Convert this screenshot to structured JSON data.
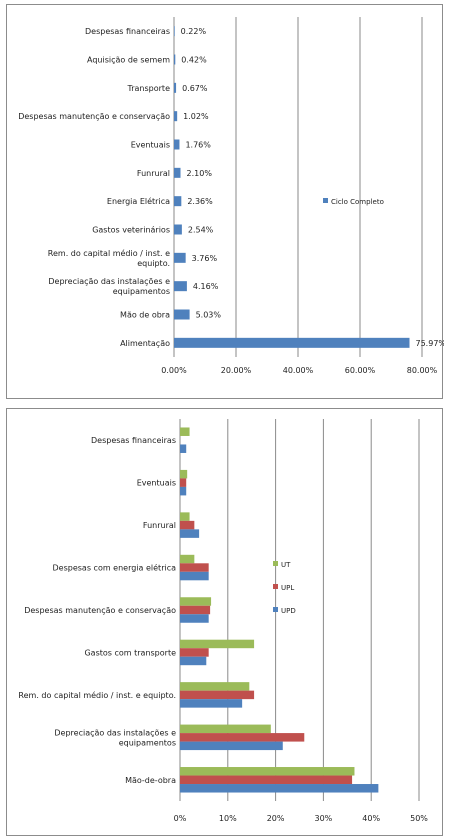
{
  "chart_data": [
    {
      "type": "bar",
      "orientation": "horizontal",
      "categories": [
        "Alimentação",
        "Mão de obra",
        "Depreciação das instalações e equipamentos",
        "Rem. do capital médio / inst. e equipto.",
        "Gastos veterinários",
        "Energia Elétrica",
        "Funrural",
        "Eventuais",
        "Despesas manutenção e conservação",
        "Transporte",
        "Aquisição de semem",
        "Despesas financeiras"
      ],
      "series": [
        {
          "name": "Ciclo Completo",
          "values": [
            75.97,
            5.03,
            4.16,
            3.76,
            2.54,
            2.36,
            2.1,
            1.76,
            1.02,
            0.67,
            0.42,
            0.22
          ],
          "labels": [
            "75.97%",
            "5.03%",
            "4.16%",
            "3.76%",
            "2.54%",
            "2.36%",
            "2.10%",
            "1.76%",
            "1.02%",
            "0.67%",
            "0.42%",
            "0.22%"
          ],
          "color": "#4f81bd"
        }
      ],
      "xlim": [
        0,
        80
      ],
      "xticks": [
        "0.00%",
        "20.00%",
        "40.00%",
        "60.00%",
        "80.00%"
      ],
      "grid": true,
      "legend_position": "right"
    },
    {
      "type": "bar",
      "orientation": "horizontal",
      "categories": [
        "Mão-de-obra",
        "Depreciação das instalações e equipamentos",
        "Rem. do capital médio / inst. e equipto.",
        "Gastos com transporte",
        "Despesas manutenção e conservação",
        "Despesas com energia elétrica",
        "Funrural",
        "Eventuais",
        "Despesas financeiras"
      ],
      "series": [
        {
          "name": "UPD",
          "color": "#4f81bd",
          "values": [
            41.5,
            21.5,
            13,
            5.5,
            6,
            6,
            4,
            1.3,
            1.3
          ]
        },
        {
          "name": "UPL",
          "color": "#c0504d",
          "values": [
            36,
            26,
            15.5,
            6,
            6.3,
            6,
            3,
            1.3,
            0
          ]
        },
        {
          "name": "UT",
          "color": "#9bbb59",
          "values": [
            36.5,
            19,
            14.5,
            15.5,
            6.5,
            3,
            2,
            1.5,
            2
          ]
        }
      ],
      "xlim": [
        0,
        50
      ],
      "xticks": [
        "0%",
        "10%",
        "20%",
        "30%",
        "40%",
        "50%"
      ],
      "grid": true,
      "legend_position": "right"
    }
  ]
}
